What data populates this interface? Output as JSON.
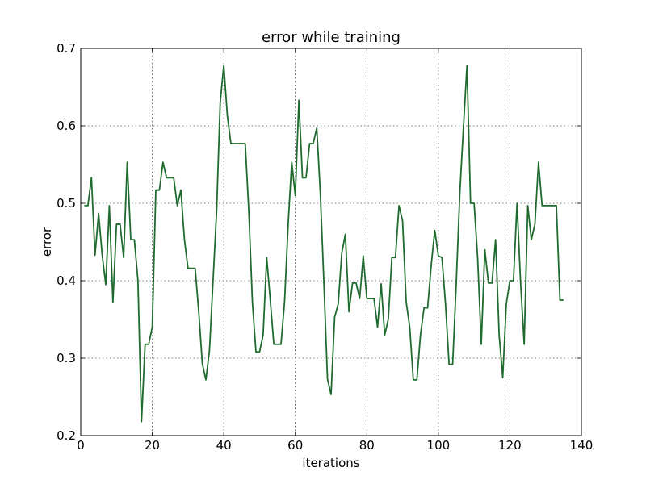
{
  "chart_data": {
    "type": "line",
    "title": "error while training",
    "xlabel": "iterations",
    "ylabel": "error",
    "xlim": [
      0,
      140
    ],
    "ylim": [
      0.2,
      0.7
    ],
    "xticks": [
      0,
      20,
      40,
      60,
      80,
      100,
      120,
      140
    ],
    "yticks": [
      0.2,
      0.3,
      0.4,
      0.5,
      0.6,
      0.7
    ],
    "xtick_labels": [
      "0",
      "20",
      "40",
      "60",
      "80",
      "100",
      "120",
      "140"
    ],
    "ytick_labels": [
      "0.2",
      "0.3",
      "0.4",
      "0.5",
      "0.6",
      "0.7"
    ],
    "grid": true,
    "line_color": "#1f6b2e",
    "series": [
      {
        "x": [
          1,
          2,
          3,
          4,
          5,
          6,
          7,
          8,
          9,
          10,
          11,
          12,
          13,
          14,
          15,
          16,
          17,
          18,
          19,
          20,
          21,
          22,
          23,
          24,
          25,
          26,
          27,
          28,
          29,
          30,
          31,
          32,
          33,
          34,
          35,
          36,
          37,
          38,
          39,
          40,
          41,
          42,
          43,
          44,
          45,
          46,
          47,
          48,
          49,
          50,
          51,
          52,
          53,
          54,
          55,
          56,
          57,
          58,
          59,
          60,
          61,
          62,
          63,
          64,
          65,
          66,
          67,
          68,
          69,
          70,
          71,
          72,
          73,
          74,
          75,
          76,
          77,
          78,
          79,
          80,
          81,
          82,
          83,
          84,
          85,
          86,
          87,
          88,
          89,
          90,
          91,
          92,
          93,
          94,
          95,
          96,
          97,
          98,
          99,
          100,
          101,
          102,
          103,
          104,
          105,
          106,
          107,
          108,
          109,
          110,
          111,
          112,
          113,
          114,
          115,
          116,
          117,
          118,
          119,
          120,
          121,
          122,
          123,
          124,
          125,
          126,
          127,
          128,
          129,
          130,
          131,
          132,
          133,
          134,
          135
        ],
        "values": [
          0.497,
          0.497,
          0.533,
          0.433,
          0.487,
          0.433,
          0.395,
          0.497,
          0.372,
          0.473,
          0.473,
          0.43,
          0.553,
          0.453,
          0.453,
          0.4,
          0.218,
          0.318,
          0.318,
          0.34,
          0.517,
          0.517,
          0.553,
          0.533,
          0.533,
          0.533,
          0.497,
          0.517,
          0.453,
          0.416,
          0.416,
          0.416,
          0.36,
          0.293,
          0.272,
          0.31,
          0.4,
          0.49,
          0.63,
          0.678,
          0.613,
          0.577,
          0.577,
          0.577,
          0.577,
          0.577,
          0.49,
          0.373,
          0.308,
          0.308,
          0.33,
          0.43,
          0.375,
          0.318,
          0.318,
          0.318,
          0.373,
          0.473,
          0.553,
          0.51,
          0.633,
          0.533,
          0.533,
          0.577,
          0.577,
          0.597,
          0.513,
          0.397,
          0.273,
          0.253,
          0.353,
          0.37,
          0.436,
          0.46,
          0.36,
          0.397,
          0.397,
          0.377,
          0.432,
          0.377,
          0.377,
          0.377,
          0.34,
          0.396,
          0.33,
          0.35,
          0.43,
          0.43,
          0.497,
          0.477,
          0.373,
          0.34,
          0.272,
          0.272,
          0.33,
          0.365,
          0.365,
          0.42,
          0.465,
          0.432,
          0.43,
          0.37,
          0.292,
          0.292,
          0.397,
          0.513,
          0.597,
          0.678,
          0.5,
          0.5,
          0.428,
          0.318,
          0.44,
          0.397,
          0.397,
          0.453,
          0.33,
          0.275,
          0.37,
          0.4,
          0.4,
          0.5,
          0.397,
          0.318,
          0.497,
          0.453,
          0.473,
          0.553,
          0.497,
          0.497,
          0.497,
          0.497,
          0.497,
          0.375,
          0.375
        ]
      }
    ]
  }
}
